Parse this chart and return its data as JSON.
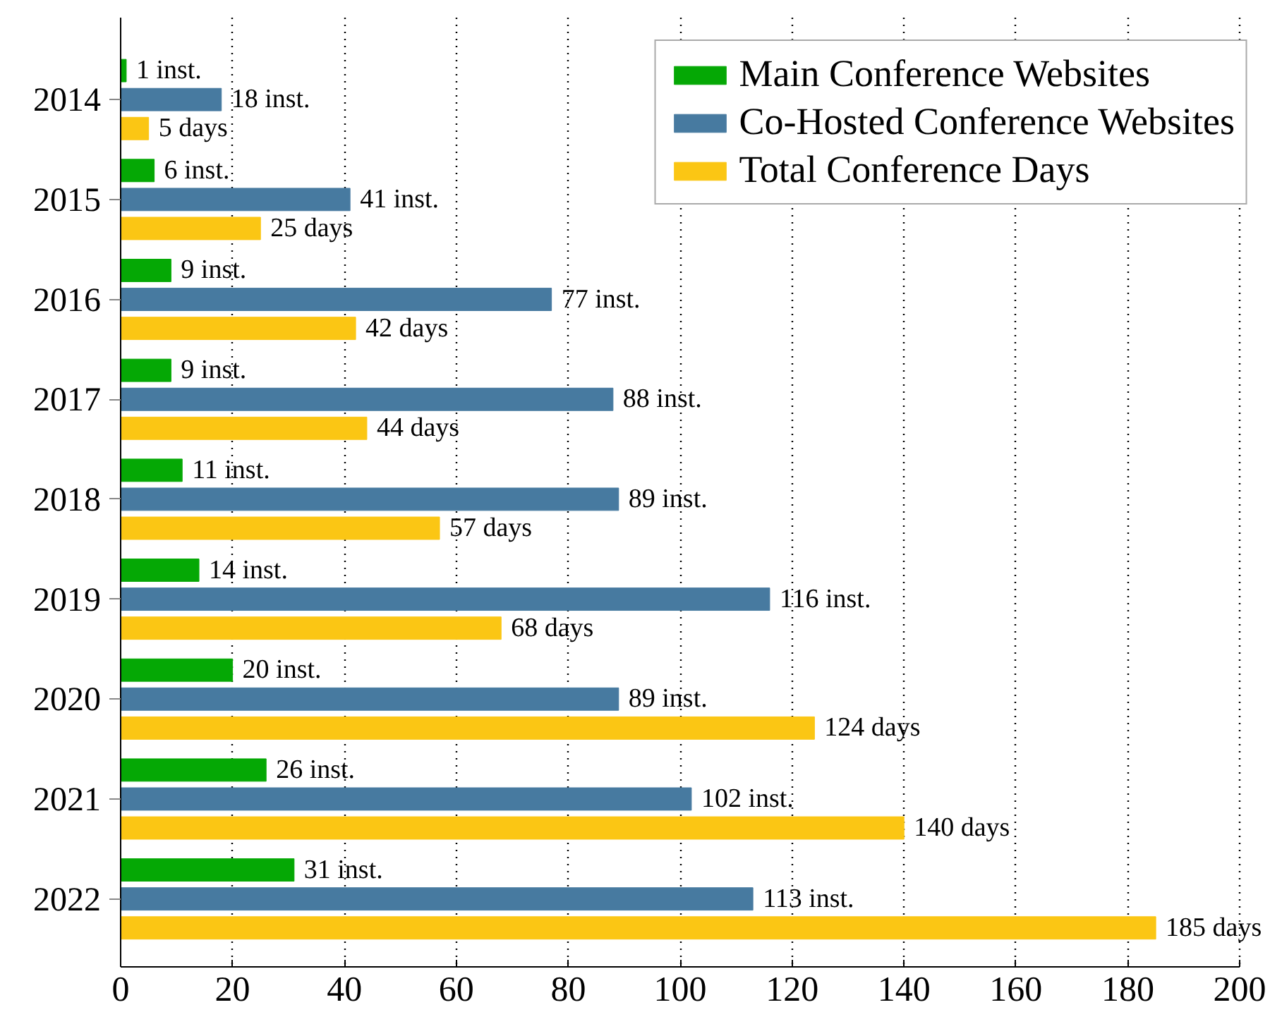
{
  "chart_data": {
    "type": "bar",
    "orientation": "horizontal",
    "categories": [
      "2014",
      "2015",
      "2016",
      "2017",
      "2018",
      "2019",
      "2020",
      "2021",
      "2022"
    ],
    "series": [
      {
        "name": "Main Conference Websites",
        "color": "#05a805",
        "values": [
          1,
          6,
          9,
          9,
          11,
          14,
          20,
          26,
          31
        ],
        "value_labels": [
          "1 inst.",
          "6 inst.",
          "9 inst.",
          "9 inst.",
          "11 inst.",
          "14 inst.",
          "20 inst.",
          "26 inst.",
          "31 inst."
        ]
      },
      {
        "name": "Co-Hosted Conference Websites",
        "color": "#477aa0",
        "values": [
          18,
          41,
          77,
          88,
          89,
          116,
          89,
          102,
          113
        ],
        "value_labels": [
          "18 inst.",
          "41 inst.",
          "77 inst.",
          "88 inst.",
          "89 inst.",
          "116 inst.",
          "89 inst.",
          "102 inst.",
          "113 inst."
        ]
      },
      {
        "name": "Total Conference Days",
        "color": "#fbc614",
        "values": [
          5,
          25,
          42,
          44,
          57,
          68,
          124,
          140,
          185
        ],
        "value_labels": [
          "5 days",
          "25 days",
          "42 days",
          "44 days",
          "57 days",
          "68 days",
          "124 days",
          "140 days",
          "185 days"
        ]
      }
    ],
    "xlim": [
      0,
      200
    ],
    "xticks": [
      0,
      20,
      40,
      60,
      80,
      100,
      120,
      140,
      160,
      180,
      200
    ],
    "grid": "x",
    "legend": "top right"
  }
}
